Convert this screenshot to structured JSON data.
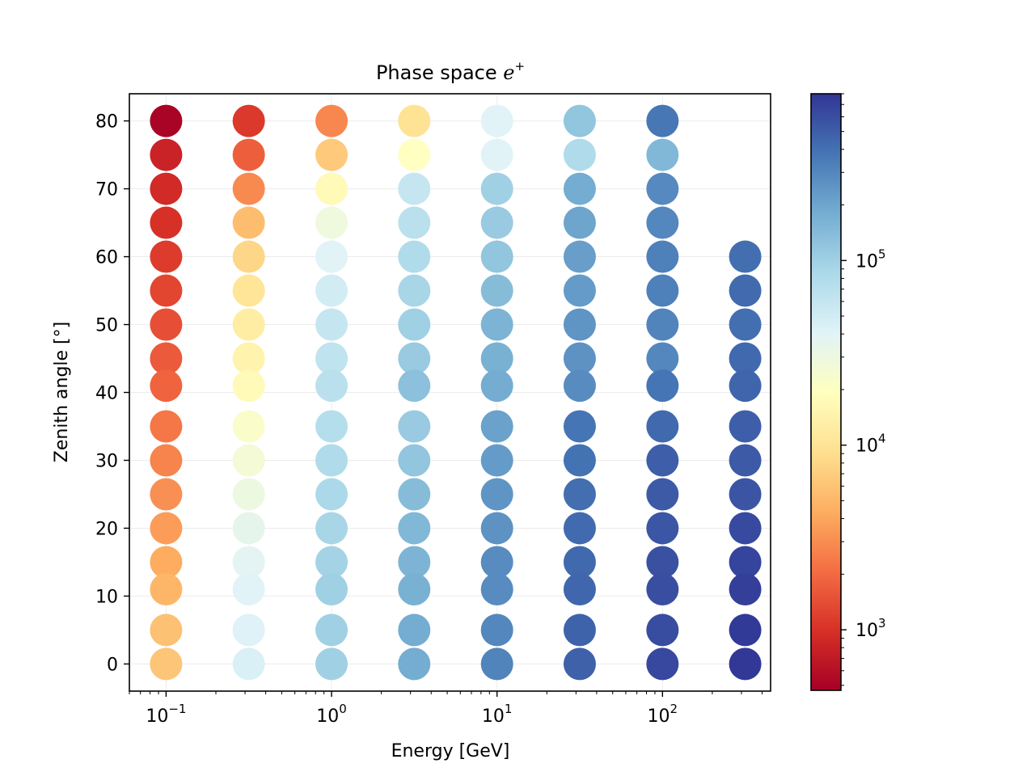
{
  "chart_data": {
    "type": "scatter",
    "title": "Phase space",
    "title_particle": "e",
    "title_particle_sup": "+",
    "xlabel": "Energy [GeV]",
    "ylabel": "Zenith angle [°]",
    "xscale": "log",
    "xlim": [
      0.06,
      450
    ],
    "ylim": [
      -4,
      84
    ],
    "x_ticks": [
      {
        "value": 0.1,
        "base": "10",
        "exp": "−1"
      },
      {
        "value": 1,
        "base": "10",
        "exp": "0"
      },
      {
        "value": 10,
        "base": "10",
        "exp": "1"
      },
      {
        "value": 100,
        "base": "10",
        "exp": "2"
      }
    ],
    "y_ticks": [
      0,
      10,
      20,
      30,
      40,
      50,
      60,
      70,
      80
    ],
    "grid": true,
    "colormap": "RdYlBu",
    "colorbar": {
      "scale": "log",
      "range": [
        470,
        800000
      ],
      "ticks": [
        {
          "value": 1000,
          "base": "10",
          "exp": "3"
        },
        {
          "value": 10000,
          "base": "10",
          "exp": "4"
        },
        {
          "value": 100000,
          "base": "10",
          "exp": "5"
        }
      ]
    },
    "energies": [
      0.1,
      0.316,
      1,
      3.16,
      10,
      31.6,
      100,
      316
    ],
    "zenith_angles": [
      80,
      75,
      70,
      65,
      60,
      55,
      50,
      45,
      41,
      35,
      30,
      25,
      20,
      15,
      11,
      5,
      0
    ],
    "series": [
      {
        "energy": 0.1,
        "values": [
          500,
          800,
          900,
          1000,
          1150,
          1300,
          1450,
          1650,
          1850,
          2300,
          2700,
          3100,
          3600,
          4300,
          4900,
          5800,
          6200
        ]
      },
      {
        "energy": 0.316,
        "values": [
          1100,
          1750,
          2900,
          5500,
          8000,
          10500,
          12500,
          14500,
          17000,
          22000,
          26000,
          30000,
          35000,
          38000,
          40000,
          42000,
          45000
        ]
      },
      {
        "energy": 1,
        "values": [
          2800,
          6500,
          17000,
          29000,
          40000,
          50000,
          60000,
          65000,
          70000,
          75000,
          80000,
          85000,
          90000,
          95000,
          100000,
          100000,
          100000
        ]
      },
      {
        "energy": 3.16,
        "values": [
          10000,
          20000,
          60000,
          70000,
          80000,
          90000,
          100000,
          110000,
          130000,
          110000,
          120000,
          140000,
          150000,
          160000,
          170000,
          180000,
          180000
        ]
      },
      {
        "energy": 10,
        "values": [
          40000,
          40000,
          100000,
          110000,
          120000,
          140000,
          160000,
          170000,
          180000,
          210000,
          230000,
          250000,
          260000,
          280000,
          280000,
          300000,
          310000
        ]
      },
      {
        "energy": 31.6,
        "values": [
          120000,
          80000,
          180000,
          200000,
          220000,
          230000,
          250000,
          260000,
          280000,
          380000,
          390000,
          410000,
          430000,
          440000,
          450000,
          470000,
          480000
        ]
      },
      {
        "energy": 100,
        "values": [
          370000,
          150000,
          290000,
          300000,
          330000,
          330000,
          310000,
          300000,
          380000,
          440000,
          500000,
          520000,
          550000,
          580000,
          600000,
          620000,
          650000
        ]
      },
      {
        "energy": 316,
        "values": [
          null,
          null,
          null,
          null,
          410000,
          430000,
          410000,
          440000,
          460000,
          500000,
          520000,
          560000,
          630000,
          680000,
          720000,
          760000,
          780000
        ]
      }
    ]
  }
}
